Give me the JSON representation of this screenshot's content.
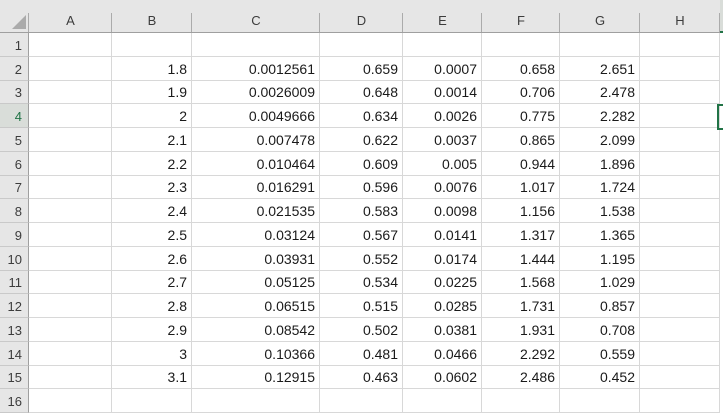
{
  "sheet": {
    "column_headers": [
      "A",
      "B",
      "C",
      "D",
      "E",
      "F",
      "G",
      "H"
    ],
    "row_numbers": [
      "1",
      "2",
      "3",
      "4",
      "5",
      "6",
      "7",
      "8",
      "9",
      "10",
      "11",
      "12",
      "13",
      "14",
      "15",
      "16"
    ],
    "cells": {
      "B2": "1.8",
      "C2": "0.0012561",
      "D2": "0.659",
      "E2": "0.0007",
      "F2": "0.658",
      "G2": "2.651",
      "B3": "1.9",
      "C3": "0.0026009",
      "D3": "0.648",
      "E3": "0.0014",
      "F3": "0.706",
      "G3": "2.478",
      "B4": "2",
      "C4": "0.0049666",
      "D4": "0.634",
      "E4": "0.0026",
      "F4": "0.775",
      "G4": "2.282",
      "B5": "2.1",
      "C5": "0.007478",
      "D5": "0.622",
      "E5": "0.0037",
      "F5": "0.865",
      "G5": "2.099",
      "B6": "2.2",
      "C6": "0.010464",
      "D6": "0.609",
      "E6": "0.005",
      "F6": "0.944",
      "G6": "1.896",
      "B7": "2.3",
      "C7": "0.016291",
      "D7": "0.596",
      "E7": "0.0076",
      "F7": "1.017",
      "G7": "1.724",
      "B8": "2.4",
      "C8": "0.021535",
      "D8": "0.583",
      "E8": "0.0098",
      "F8": "1.156",
      "G8": "1.538",
      "B9": "2.5",
      "C9": "0.03124",
      "D9": "0.567",
      "E9": "0.0141",
      "F9": "1.317",
      "G9": "1.365",
      "B10": "2.6",
      "C10": "0.03931",
      "D10": "0.552",
      "E10": "0.0174",
      "F10": "1.444",
      "G10": "1.195",
      "B11": "2.7",
      "C11": "0.05125",
      "D11": "0.534",
      "E11": "0.0225",
      "F11": "1.568",
      "G11": "1.029",
      "B12": "2.8",
      "C12": "0.06515",
      "D12": "0.515",
      "E12": "0.0285",
      "F12": "1.731",
      "G12": "0.857",
      "B13": "2.9",
      "C13": "0.08542",
      "D13": "0.502",
      "E13": "0.0381",
      "F13": "1.931",
      "G13": "0.708",
      "B14": "3",
      "C14": "0.10366",
      "D14": "0.481",
      "E14": "0.0466",
      "F14": "2.292",
      "G14": "0.559",
      "B15": "3.1",
      "C15": "0.12915",
      "D15": "0.463",
      "E15": "0.0602",
      "F15": "2.486",
      "G15": "0.452"
    }
  },
  "selection": {
    "highlighted_row_header": "4"
  },
  "colors": {
    "accent_green": "#217346",
    "header_background": "#E6E6E6",
    "selected_header_background": "#D9DDD9",
    "header_text": "#3C3C3C",
    "selected_header_text": "#217346",
    "gridline": "#D8D8D8",
    "header_edge": "#9F9F9F",
    "cell_text": "#1A1A1A",
    "select_all_triangle": "#ABABAB"
  }
}
